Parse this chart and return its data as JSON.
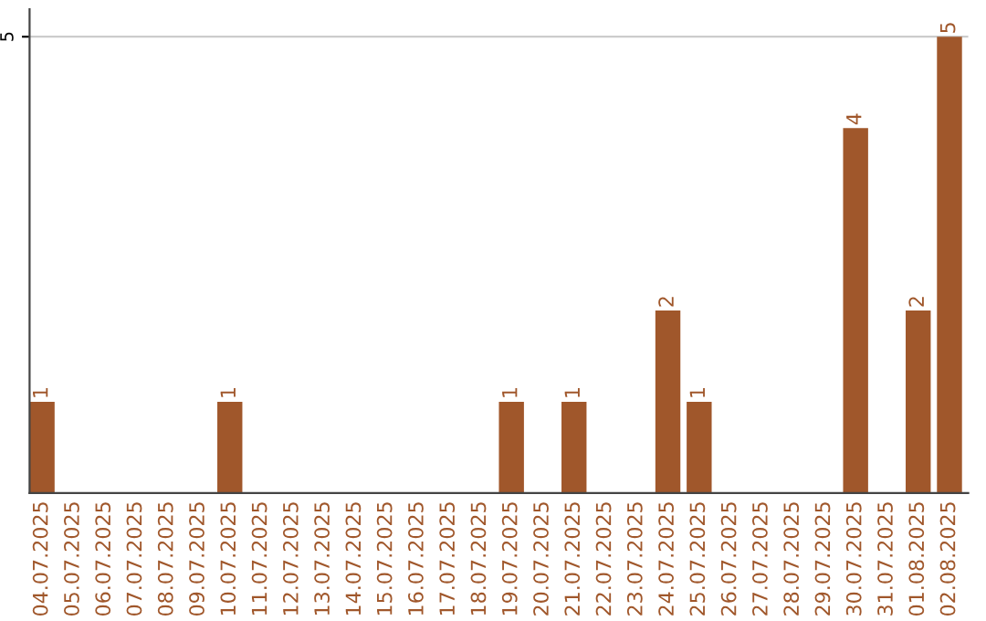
{
  "chart_data": {
    "type": "bar",
    "categories": [
      "04.07.2025",
      "05.07.2025",
      "06.07.2025",
      "07.07.2025",
      "08.07.2025",
      "09.07.2025",
      "10.07.2025",
      "11.07.2025",
      "12.07.2025",
      "13.07.2025",
      "14.07.2025",
      "15.07.2025",
      "16.07.2025",
      "17.07.2025",
      "18.07.2025",
      "19.07.2025",
      "20.07.2025",
      "21.07.2025",
      "22.07.2025",
      "23.07.2025",
      "24.07.2025",
      "25.07.2025",
      "26.07.2025",
      "27.07.2025",
      "28.07.2025",
      "29.07.2025",
      "30.07.2025",
      "31.07.2025",
      "01.08.2025",
      "02.08.2025"
    ],
    "values": [
      1,
      0,
      0,
      0,
      0,
      0,
      1,
      0,
      0,
      0,
      0,
      0,
      0,
      0,
      0,
      1,
      0,
      1,
      0,
      0,
      2,
      1,
      0,
      0,
      0,
      0,
      4,
      0,
      2,
      5
    ],
    "value_labels": [
      "1",
      null,
      null,
      null,
      null,
      null,
      "1",
      null,
      null,
      null,
      null,
      null,
      null,
      null,
      null,
      "1",
      null,
      "1",
      null,
      null,
      "2",
      "1",
      null,
      null,
      null,
      null,
      "4",
      null,
      "2",
      "5"
    ],
    "color": "#a0572b",
    "ylim": [
      0,
      5.3
    ],
    "yticks": [
      5
    ],
    "grid": "y"
  }
}
